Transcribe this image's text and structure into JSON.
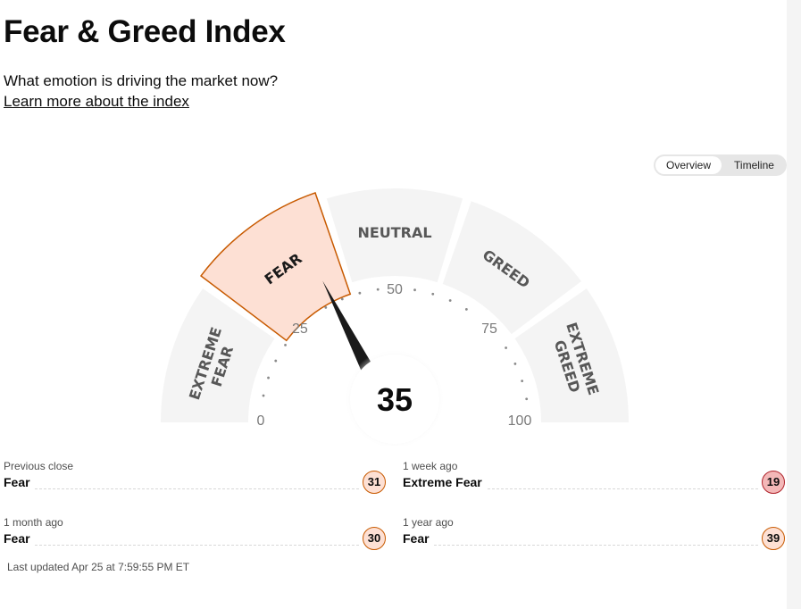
{
  "page": {
    "title": "Fear & Greed Index",
    "subtitle": "What emotion is driving the market now?",
    "learn_more": "Learn more about the index"
  },
  "view_toggle": {
    "options": [
      "Overview",
      "Timeline"
    ],
    "selected": "Overview"
  },
  "gauge": {
    "value": 35,
    "value_label": "35",
    "active_segment": "Fear",
    "segments": [
      {
        "label_lines": [
          "EXTREME",
          "FEAR"
        ]
      },
      {
        "label_lines": [
          "FEAR"
        ]
      },
      {
        "label_lines": [
          "NEUTRAL"
        ]
      },
      {
        "label_lines": [
          "GREED"
        ]
      },
      {
        "label_lines": [
          "EXTREME",
          "GREED"
        ]
      }
    ],
    "scale_labels": [
      "0",
      "25",
      "50",
      "75",
      "100"
    ],
    "colors": {
      "segment_bg": "#f4f4f4",
      "active_fill": "#fde0d4",
      "active_stroke": "#c85a00",
      "needle": "#1a1a1a"
    }
  },
  "history": [
    {
      "period": "Previous close",
      "rating": "Fear",
      "value": "31"
    },
    {
      "period": "1 week ago",
      "rating": "Extreme Fear",
      "value": "19"
    },
    {
      "period": "1 month ago",
      "rating": "Fear",
      "value": "30"
    },
    {
      "period": "1 year ago",
      "rating": "Fear",
      "value": "39"
    }
  ],
  "last_updated": "Last updated Apr 25 at 7:59:55 PM ET"
}
